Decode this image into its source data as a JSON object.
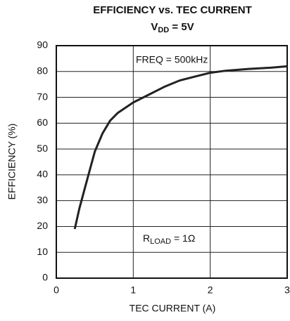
{
  "chart_data": {
    "type": "line",
    "title": "EFFICIENCY vs. TEC CURRENT",
    "subtitle": {
      "main": "V",
      "sub": "DD",
      "rest": " = 5V"
    },
    "xlabel": "TEC CURRENT (A)",
    "ylabel": "EFFICIENCY (%)",
    "annotations": [
      "FREQ = 500kHz",
      {
        "main": "R",
        "sub": "LOAD",
        "rest": " = 1Ω"
      }
    ],
    "xlim": [
      0,
      3
    ],
    "xticks": [
      0,
      1,
      2,
      3
    ],
    "ylim": [
      0,
      90
    ],
    "yticks": [
      0,
      10,
      20,
      30,
      40,
      50,
      60,
      70,
      80,
      90
    ],
    "grid": true,
    "series": [
      {
        "color": "#222222",
        "x": [
          0.24,
          0.3,
          0.4,
          0.5,
          0.6,
          0.7,
          0.8,
          1.0,
          1.2,
          1.4,
          1.6,
          1.8,
          2.0,
          2.2,
          2.5,
          2.8,
          3.0
        ],
        "values": [
          19,
          27,
          38,
          49,
          56,
          61,
          64,
          68,
          71,
          74,
          76.5,
          78,
          79.5,
          80.3,
          81,
          81.5,
          82
        ]
      }
    ]
  }
}
